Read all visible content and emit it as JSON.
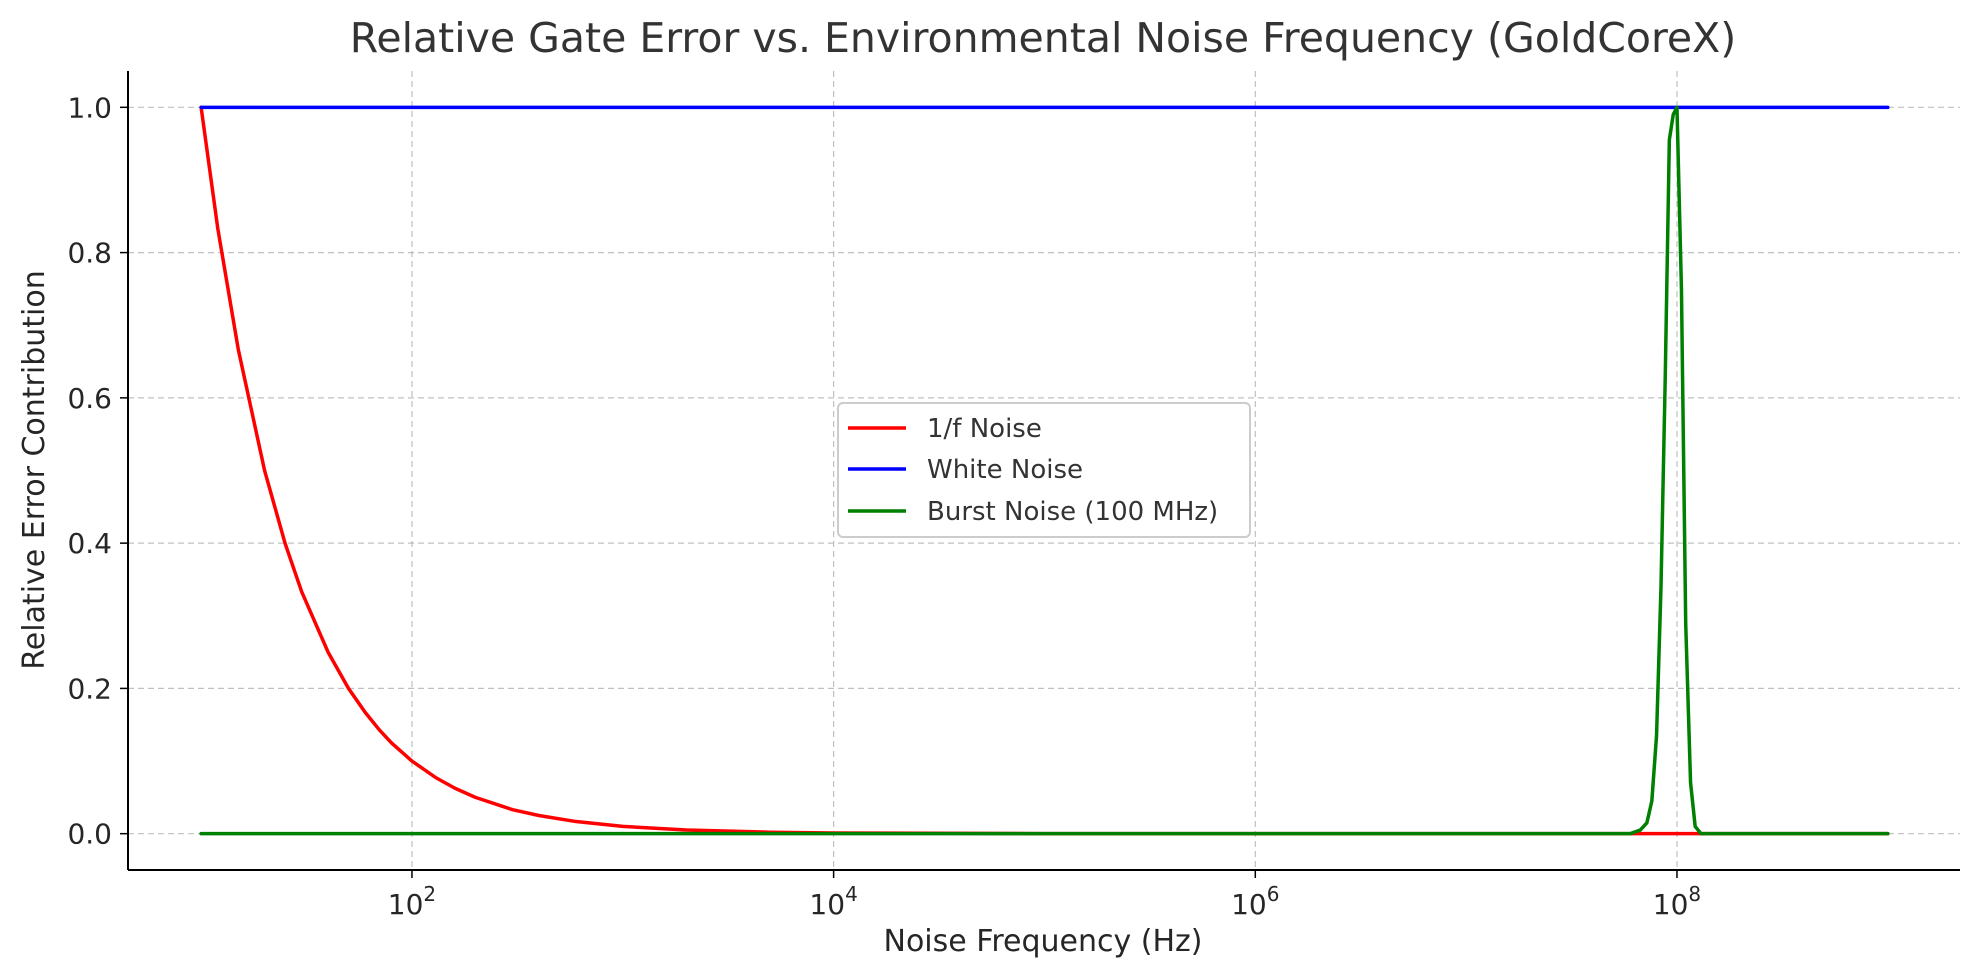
{
  "chart_data": {
    "type": "line",
    "title": "Relative Gate Error vs. Environmental Noise Frequency (GoldCoreX)",
    "xlabel": "Noise Frequency (Hz)",
    "ylabel": "Relative Error Contribution",
    "x_scale": "log",
    "xlim": [
      4.5,
      2200000000.0
    ],
    "ylim": [
      -0.05,
      1.05
    ],
    "x_ticks": [
      {
        "value": 100,
        "base": "10",
        "exp": "2"
      },
      {
        "value": 10000,
        "base": "10",
        "exp": "4"
      },
      {
        "value": 1000000,
        "base": "10",
        "exp": "6"
      },
      {
        "value": 100000000,
        "base": "10",
        "exp": "8"
      }
    ],
    "y_ticks": [
      {
        "value": 0.0,
        "label": "0.0"
      },
      {
        "value": 0.2,
        "label": "0.2"
      },
      {
        "value": 0.4,
        "label": "0.4"
      },
      {
        "value": 0.6,
        "label": "0.6"
      },
      {
        "value": 0.8,
        "label": "0.8"
      },
      {
        "value": 1.0,
        "label": "1.0"
      }
    ],
    "grid": true,
    "legend_position": "center",
    "series": [
      {
        "name": "1/f Noise",
        "color": "#ff0000",
        "x": [
          10,
          12,
          15,
          20,
          25,
          30,
          40,
          50,
          60,
          70,
          80,
          100,
          130,
          160,
          200,
          300,
          400,
          600,
          1000,
          2000,
          5000,
          10000,
          100000,
          1000000000
        ],
        "y": [
          1.0,
          0.833,
          0.667,
          0.5,
          0.4,
          0.333,
          0.25,
          0.2,
          0.167,
          0.143,
          0.125,
          0.1,
          0.077,
          0.0625,
          0.05,
          0.033,
          0.025,
          0.0167,
          0.01,
          0.005,
          0.002,
          0.001,
          0.0001,
          0.0
        ]
      },
      {
        "name": "White Noise",
        "color": "#0000ff",
        "x": [
          10,
          1000000000
        ],
        "y": [
          1.0,
          1.0
        ]
      },
      {
        "name": "Burst Noise (100 MHz)",
        "color": "#008000",
        "x": [
          10,
          60000000,
          67000000,
          72000000,
          76000000,
          80000000,
          84000000,
          88000000,
          92000000,
          96000000,
          100000000,
          105000000,
          110000000,
          116000000,
          122000000,
          130000000,
          1000000000
        ],
        "y": [
          0.0,
          0.0,
          0.005,
          0.015,
          0.045,
          0.135,
          0.34,
          0.63,
          0.955,
          0.99,
          1.0,
          0.75,
          0.29,
          0.07,
          0.01,
          0.0,
          0.0
        ]
      }
    ]
  }
}
